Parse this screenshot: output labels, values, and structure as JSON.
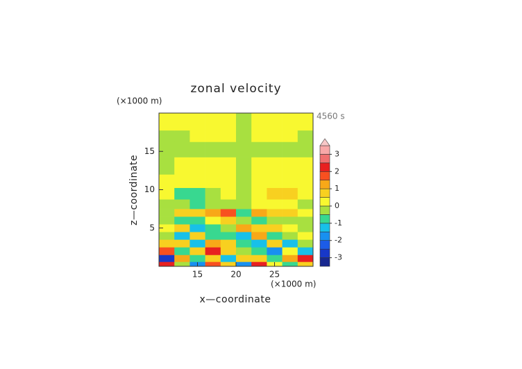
{
  "chart_data": {
    "type": "contourf",
    "title": "zonal velocity",
    "xlabel": "x—coordinate",
    "ylabel": "z—coordinate",
    "xunit": "(×1000 m)",
    "yunit": "(×1000 m)",
    "time_label": "4560 s",
    "xlim": [
      10,
      30
    ],
    "ylim": [
      0,
      20
    ],
    "xticks": [
      15,
      20,
      25
    ],
    "yticks": [
      5,
      10,
      15
    ],
    "xbins": [
      10,
      12,
      14,
      16,
      18,
      20,
      22,
      24,
      26,
      28,
      30
    ],
    "ybins": [
      0,
      0.6,
      1.5,
      2.5,
      3.5,
      4.5,
      5.5,
      6.5,
      7.5,
      8.75,
      10.25,
      12,
      14.25,
      16.25,
      17.75,
      20
    ],
    "values": [
      [
        2.0,
        -0.3,
        -1.8,
        1.5,
        0.6,
        -1.9,
        2.0,
        0.4,
        -0.6,
        0.8
      ],
      [
        -2.6,
        1.2,
        -0.7,
        0.6,
        -1.3,
        0.6,
        0.8,
        -0.6,
        1.4,
        2.0
      ],
      [
        1.9,
        -0.6,
        0.8,
        2.2,
        0.5,
        -0.3,
        -0.9,
        -1.6,
        0.3,
        -1.2
      ],
      [
        0.8,
        0.9,
        -1.3,
        1.2,
        0.8,
        -0.7,
        -1.3,
        0.5,
        -1.1,
        -0.3
      ],
      [
        -0.3,
        -1.2,
        0.7,
        -0.6,
        -0.9,
        -1.2,
        1.4,
        -0.8,
        -0.5,
        0.2
      ],
      [
        0.3,
        0.6,
        -1.2,
        -0.7,
        -0.5,
        1.3,
        0.9,
        0.6,
        0.3,
        -0.3
      ],
      [
        -0.4,
        -0.8,
        -0.6,
        0.3,
        0.8,
        -0.3,
        -0.8,
        -0.4,
        -0.3,
        -0.2
      ],
      [
        -0.1,
        0.6,
        0.7,
        1.2,
        1.6,
        -0.6,
        1.2,
        0.7,
        0.6,
        0.1
      ],
      [
        -0.2,
        -0.3,
        -0.6,
        -0.3,
        -0.2,
        -0.2,
        0.3,
        0.3,
        0.3,
        -0.1
      ],
      [
        0.1,
        -0.6,
        -0.6,
        -0.3,
        0.1,
        -0.3,
        0.3,
        0.6,
        0.5,
        0.2
      ],
      [
        0.1,
        0.1,
        0.1,
        0.1,
        0.1,
        -0.1,
        0.1,
        0.1,
        0.1,
        0.1
      ],
      [
        -0.1,
        0.1,
        0.2,
        0.3,
        0.1,
        -0.1,
        0.3,
        0.3,
        0.2,
        0.1
      ],
      [
        -0.2,
        -0.2,
        -0.2,
        -0.2,
        -0.2,
        -0.2,
        -0.2,
        -0.2,
        -0.2,
        -0.2
      ],
      [
        -0.2,
        -0.1,
        0.1,
        0.1,
        0.1,
        -0.1,
        0.1,
        0.1,
        0.1,
        -0.1
      ],
      [
        0.2,
        0.2,
        0.2,
        0.3,
        0.2,
        -0.1,
        0.2,
        0.3,
        0.2,
        0.1
      ]
    ],
    "colorbar": {
      "levels": [
        -3.5,
        -3,
        -2.5,
        -2,
        -1.5,
        -1,
        -0.5,
        0,
        0.5,
        1,
        1.5,
        2,
        2.5,
        3,
        3.5
      ],
      "colors": [
        "#182890",
        "#1838c8",
        "#1c5ce8",
        "#1890f0",
        "#18c0e8",
        "#38d890",
        "#a8e040",
        "#f8f830",
        "#f8d020",
        "#f8a818",
        "#f85020",
        "#e82020",
        "#f07070",
        "#f8a8a8"
      ],
      "over_color": "#f8c8c8",
      "ticks": [
        -3,
        -2,
        -1,
        0,
        1,
        2,
        3
      ]
    }
  }
}
